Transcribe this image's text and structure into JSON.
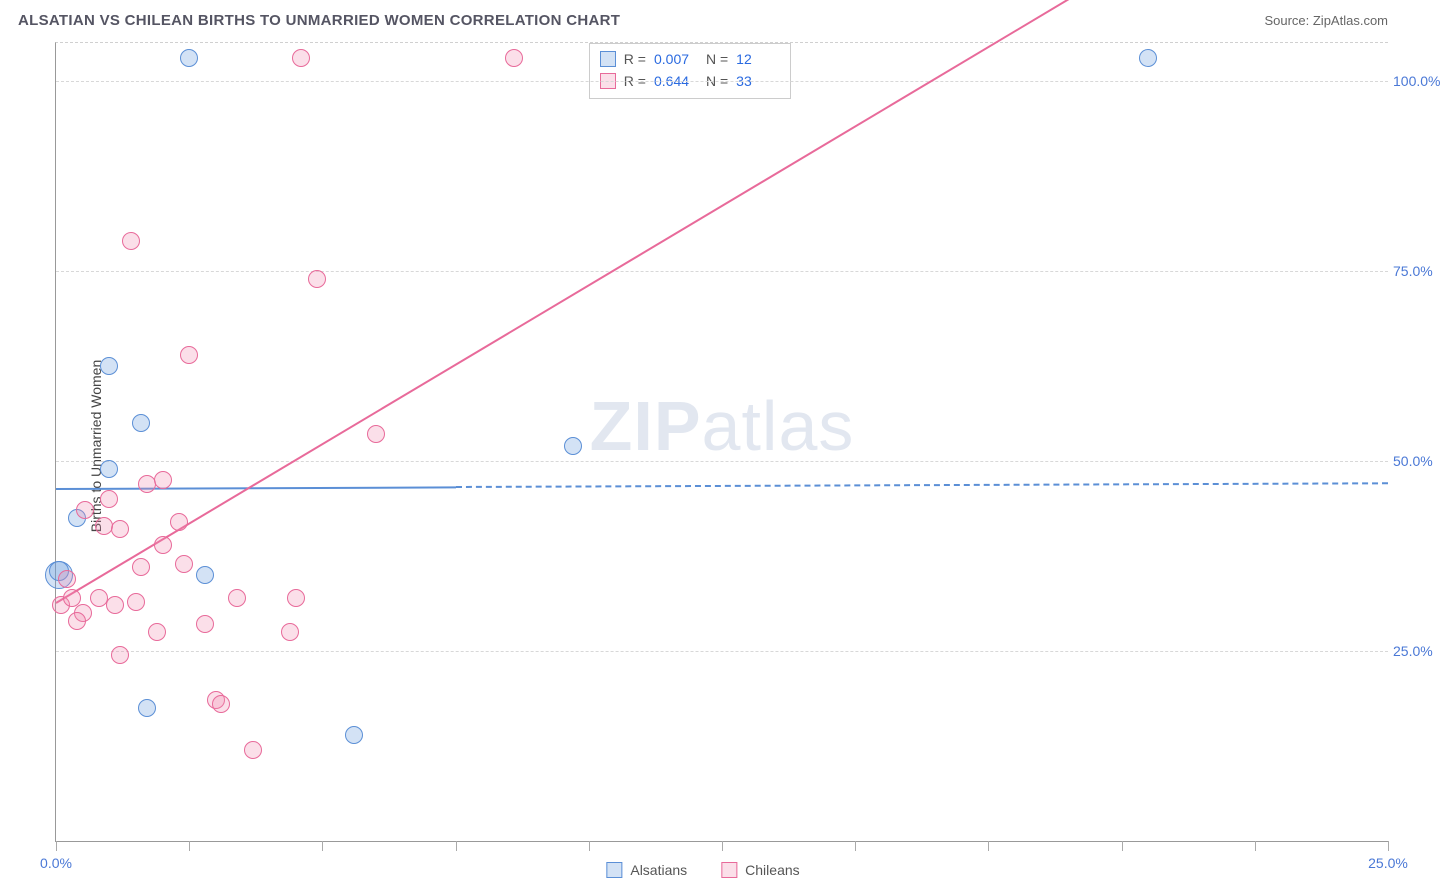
{
  "header": {
    "title": "ALSATIAN VS CHILEAN BIRTHS TO UNMARRIED WOMEN CORRELATION CHART",
    "source": "Source: ZipAtlas.com"
  },
  "ylabel": "Births to Unmarried Women",
  "watermark": {
    "bold": "ZIP",
    "rest": "atlas"
  },
  "chart": {
    "type": "scatter",
    "background_color": "#ffffff",
    "grid_color": "#d8d8d8",
    "axis_color": "#999999",
    "label_color": "#4a78d6",
    "xlim": [
      0,
      25
    ],
    "ylim": [
      0,
      105
    ],
    "xticks": [
      0,
      2.5,
      5,
      7.5,
      10,
      12.5,
      15,
      17.5,
      20,
      22.5,
      25
    ],
    "xtick_labels_shown": {
      "0": "0.0%",
      "25": "25.0%"
    },
    "yticks": [
      25,
      50,
      75,
      100
    ],
    "ytick_labels": [
      "25.0%",
      "50.0%",
      "75.0%",
      "100.0%"
    ],
    "marker_radius": 9,
    "marker_border_width": 1.2,
    "fill_opacity": 0.28
  },
  "series": [
    {
      "name": "Alsatians",
      "color_stroke": "#5b8fd6",
      "color_fill": "rgba(108,160,222,0.30)",
      "R": "0.007",
      "N": "12",
      "trend": {
        "y_at_x0": 46.5,
        "y_at_xmax": 47.2,
        "solid_until_x": 7.5
      },
      "points": [
        {
          "x": 0.05,
          "y": 35.0,
          "r": 14
        },
        {
          "x": 0.05,
          "y": 35.5,
          "r": 10
        },
        {
          "x": 0.4,
          "y": 42.5
        },
        {
          "x": 1.0,
          "y": 49.0
        },
        {
          "x": 1.0,
          "y": 62.5
        },
        {
          "x": 1.6,
          "y": 55.0
        },
        {
          "x": 1.7,
          "y": 17.5
        },
        {
          "x": 2.5,
          "y": 103.0
        },
        {
          "x": 5.6,
          "y": 14.0
        },
        {
          "x": 9.7,
          "y": 52.0
        },
        {
          "x": 20.5,
          "y": 103.0
        },
        {
          "x": 2.8,
          "y": 35.0
        }
      ]
    },
    {
      "name": "Chileans",
      "color_stroke": "#e86a9a",
      "color_fill": "rgba(242,140,175,0.28)",
      "R": "0.644",
      "N": "33",
      "trend": {
        "y_at_x0": 31.5,
        "y_at_xmax": 136.0,
        "solid_until_x": 25
      },
      "points": [
        {
          "x": 0.1,
          "y": 31.0
        },
        {
          "x": 0.3,
          "y": 32.0
        },
        {
          "x": 0.2,
          "y": 34.5
        },
        {
          "x": 0.5,
          "y": 30.0
        },
        {
          "x": 0.55,
          "y": 43.5
        },
        {
          "x": 0.8,
          "y": 32.0
        },
        {
          "x": 0.9,
          "y": 41.5
        },
        {
          "x": 1.0,
          "y": 45.0
        },
        {
          "x": 1.1,
          "y": 31.0
        },
        {
          "x": 1.2,
          "y": 24.5
        },
        {
          "x": 1.2,
          "y": 41.0
        },
        {
          "x": 1.4,
          "y": 79.0
        },
        {
          "x": 1.5,
          "y": 31.5
        },
        {
          "x": 1.6,
          "y": 36.0
        },
        {
          "x": 1.7,
          "y": 47.0
        },
        {
          "x": 1.9,
          "y": 27.5
        },
        {
          "x": 2.0,
          "y": 39.0
        },
        {
          "x": 2.0,
          "y": 47.5
        },
        {
          "x": 2.4,
          "y": 36.5
        },
        {
          "x": 2.5,
          "y": 64.0
        },
        {
          "x": 2.8,
          "y": 28.5
        },
        {
          "x": 3.0,
          "y": 18.5
        },
        {
          "x": 3.1,
          "y": 18.0
        },
        {
          "x": 3.4,
          "y": 32.0
        },
        {
          "x": 3.7,
          "y": 12.0
        },
        {
          "x": 4.4,
          "y": 27.5
        },
        {
          "x": 4.5,
          "y": 32.0
        },
        {
          "x": 4.6,
          "y": 103.0
        },
        {
          "x": 4.9,
          "y": 74.0
        },
        {
          "x": 6.0,
          "y": 53.5
        },
        {
          "x": 8.6,
          "y": 103.0
        },
        {
          "x": 2.3,
          "y": 42.0
        },
        {
          "x": 0.4,
          "y": 29.0
        }
      ]
    }
  ],
  "legend_bottom": [
    "Alsatians",
    "Chileans"
  ]
}
